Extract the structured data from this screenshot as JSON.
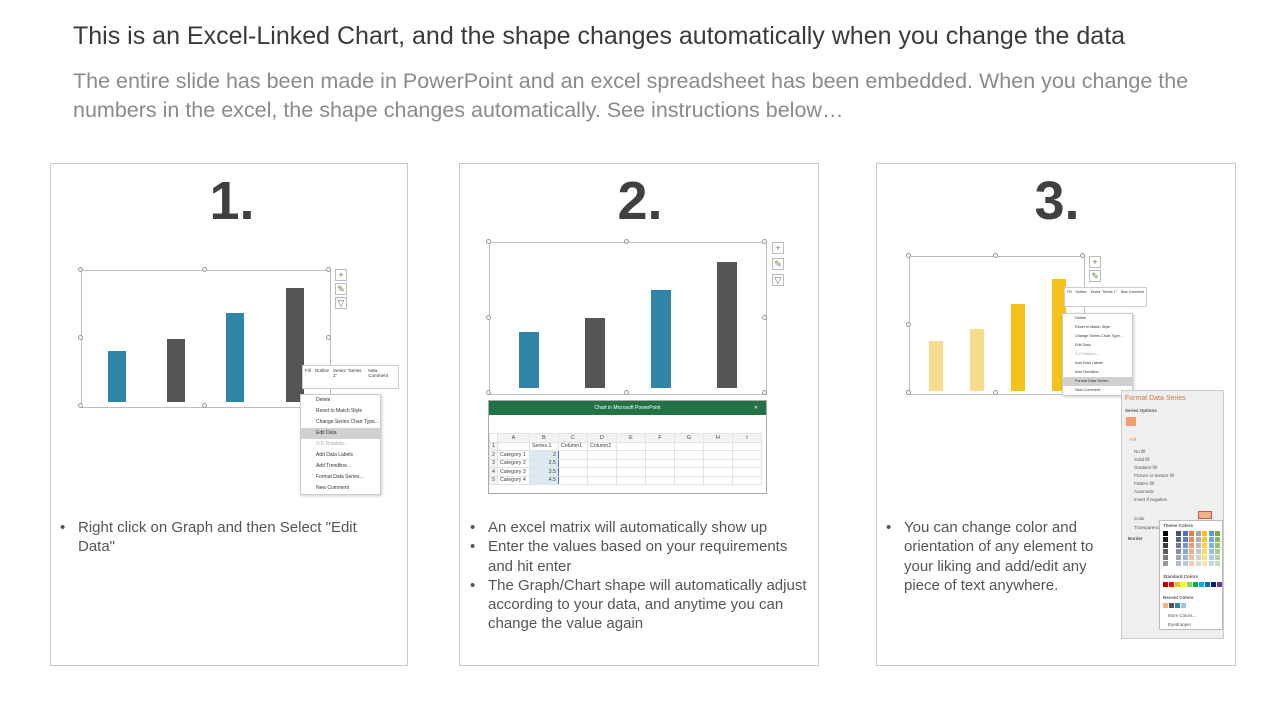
{
  "title": "This is an Excel-Linked Chart, and the shape changes automatically when you change the data",
  "subtitle": "The entire slide has been made in PowerPoint and an excel spreadsheet has been embedded. When you change the numbers in the excel, the shape changes automatically. See instructions below…",
  "colors": {
    "teal": "#2f86a6",
    "dark_gray": "#555555",
    "yellow": "#f5c21b",
    "light_yellow": "#f6dc8c",
    "excel_green": "#217346",
    "format_title": "#d9753b"
  },
  "excel": {
    "window_title": "Chart in Microsoft PowerPoint",
    "columns": [
      "A",
      "B",
      "C",
      "D",
      "E",
      "F",
      "G",
      "H",
      "I"
    ],
    "header": [
      "",
      "Series 1",
      "Column1",
      "Column2"
    ],
    "rows": [
      {
        "n": "1"
      },
      {
        "n": "2",
        "cat": "Category 1",
        "val": 2
      },
      {
        "n": "3",
        "cat": "Category 2",
        "val": 2.5
      },
      {
        "n": "4",
        "cat": "Category 3",
        "val": 3.5
      },
      {
        "n": "5",
        "cat": "Category 4",
        "val": 4.5
      }
    ]
  },
  "toolbar": {
    "fill": "Fill",
    "outline": "Outline",
    "series": "Series \"Series 1\"",
    "new_comment": "New Comment"
  },
  "context_menu": [
    "Delete",
    "Reset to Match Style",
    "Change Series Chart Type...",
    "Edit Data",
    "3-D Rotation...",
    "Add Data Labels",
    "Add Trendline...",
    "Format Data Series...",
    "New Comment"
  ],
  "format_pane": {
    "title": "Format Data Series",
    "series_options": "Series Options",
    "fill": "Fill",
    "options": [
      "No fill",
      "Solid fill",
      "Gradient fill",
      "Picture or texture fill",
      "Pattern fill",
      "Automatic",
      "Invert if negative"
    ],
    "color": "Color",
    "transparency": "Transparency",
    "border": "Border",
    "theme_colors": "Theme Colors",
    "standard_colors": "Standard Colors",
    "recent_colors": "Recent Colors",
    "more_colors": "More Colors...",
    "eyedropper": "Eyedropper"
  },
  "panels": [
    {
      "number": "1.",
      "bullets": [
        "Right click on Graph and then Select \"Edit Data\""
      ]
    },
    {
      "number": "2.",
      "bullets": [
        "An excel matrix will automatically show up",
        "Enter the values based on your requirements and hit enter",
        "The Graph/Chart shape will automatically adjust according to your data, and anytime you can change the value again"
      ]
    },
    {
      "number": "3.",
      "bullets": [
        "You can change color and orientation of any element to your liking and add/edit any piece of text anywhere."
      ]
    }
  ]
}
